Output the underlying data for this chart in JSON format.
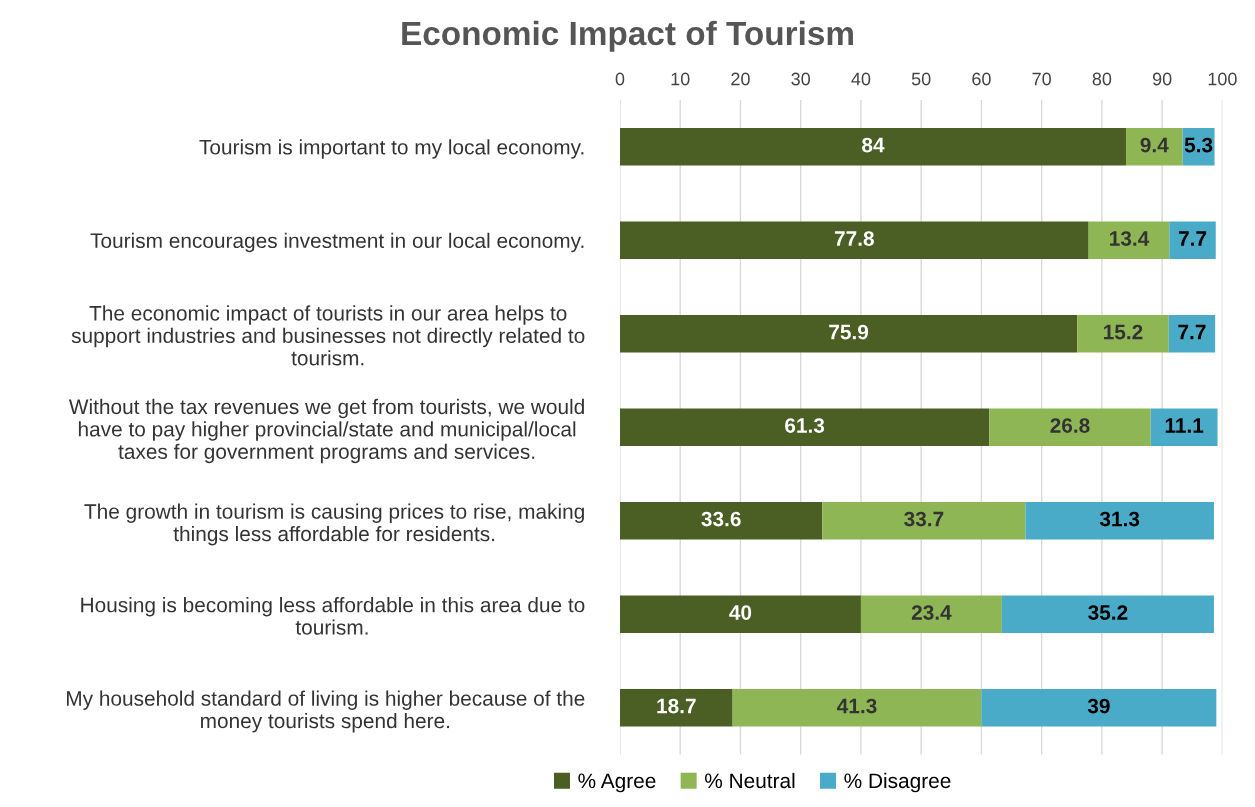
{
  "chart_data": {
    "type": "bar",
    "orientation": "horizontal",
    "stacked": true,
    "title": "Economic Impact of Tourism",
    "categories": [
      "Tourism is important to my local economy.",
      "Tourism encourages investment in our local economy.",
      "The economic impact of tourists in our area helps to\nsupport industries and businesses not directly related to\ntourism.",
      "Without the tax revenues we get from tourists, we would\nhave to pay higher provincial/state and municipal/local\ntaxes for government programs and services.",
      "The growth in tourism is causing prices to rise, making\nthings less affordable for residents.",
      "Housing is becoming less affordable in this area due to\ntourism.",
      "My household standard of living is higher because of the\nmoney tourists spend here."
    ],
    "series": [
      {
        "name": "% Agree",
        "color": "#4b5e24",
        "values": [
          84,
          77.8,
          75.9,
          61.3,
          33.6,
          40,
          18.7
        ]
      },
      {
        "name": "% Neutral",
        "color": "#8fb654",
        "values": [
          9.4,
          13.4,
          15.2,
          26.8,
          33.7,
          23.4,
          41.3
        ]
      },
      {
        "name": "% Disagree",
        "color": "#4aabc8",
        "values": [
          5.3,
          7.7,
          7.7,
          11.1,
          31.3,
          35.2,
          39
        ]
      }
    ],
    "xlim": [
      0,
      100
    ],
    "xticks": [
      0,
      10,
      20,
      30,
      40,
      50,
      60,
      70,
      80,
      90,
      100
    ],
    "grid": "x",
    "legend": "bottom",
    "data_labels": true
  }
}
